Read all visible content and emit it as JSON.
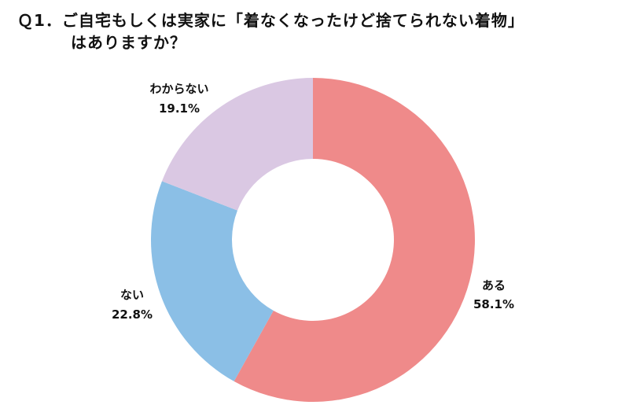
{
  "chart_data": {
    "type": "pie",
    "donut": true,
    "title_lines": [
      "Ｑ1．ご自宅もしくは実家に「着なくなったけど捨てられない着物」",
      "はありますか？"
    ],
    "slices": [
      {
        "name": "ある",
        "value": 58.1,
        "value_label": "58.1%",
        "color": "#ef8a8a"
      },
      {
        "name": "ない",
        "value": 22.8,
        "value_label": "22.8%",
        "color": "#8bbfe6"
      },
      {
        "name": "わからない",
        "value": 19.1,
        "value_label": "19.1%",
        "color": "#dac8e3"
      }
    ],
    "start_position": "top",
    "direction": "clockwise"
  }
}
